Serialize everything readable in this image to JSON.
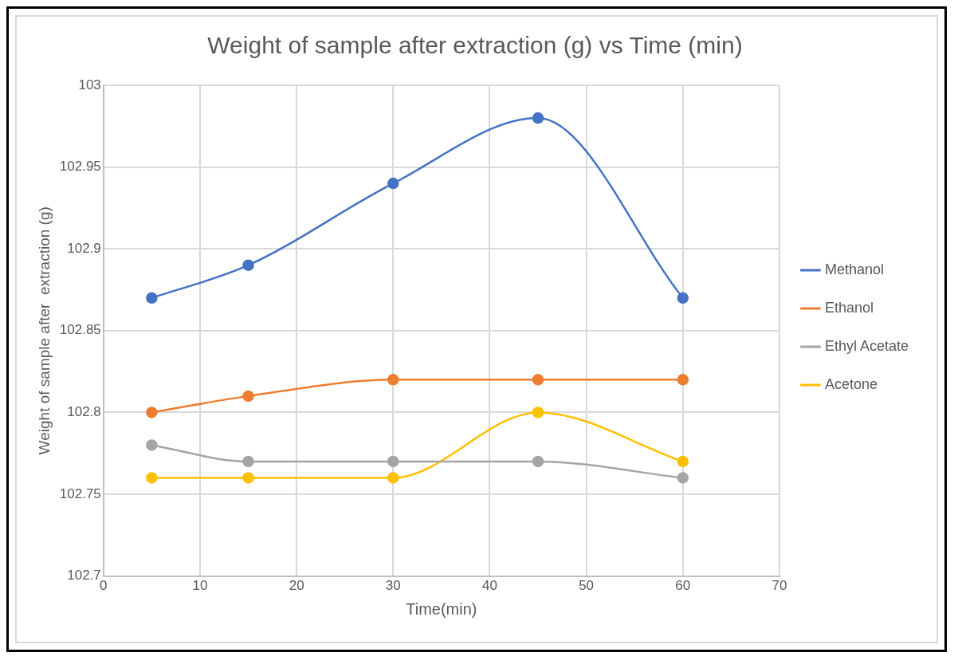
{
  "chart_data": {
    "type": "line",
    "title": "Weight of sample after extraction (g) vs Time (min)",
    "xlabel": "Time(min)",
    "ylabel": "Weight of sample after  extraction (g)",
    "x": [
      5,
      15,
      30,
      45,
      60
    ],
    "series": [
      {
        "name": "Methanol",
        "color": "#4472c4",
        "values": [
          102.87,
          102.89,
          102.94,
          102.98,
          102.87
        ]
      },
      {
        "name": "Ethanol",
        "color": "#ed7d31",
        "values": [
          102.8,
          102.81,
          102.82,
          102.82,
          102.82
        ]
      },
      {
        "name": "Ethyl Acetate",
        "color": "#a5a5a5",
        "values": [
          102.78,
          102.77,
          102.77,
          102.77,
          102.76
        ]
      },
      {
        "name": "Acetone",
        "color": "#ffc000",
        "values": [
          102.76,
          102.76,
          102.76,
          102.8,
          102.77
        ]
      }
    ],
    "xlim": [
      0,
      70
    ],
    "xticks": [
      0,
      10,
      20,
      30,
      40,
      50,
      60,
      70
    ],
    "ylim": [
      102.7,
      103
    ],
    "yticks": [
      102.7,
      102.75,
      102.8,
      102.85,
      102.9,
      102.95,
      103
    ],
    "grid": true,
    "legend": "right",
    "marker": "circle",
    "line_style": "solid"
  }
}
